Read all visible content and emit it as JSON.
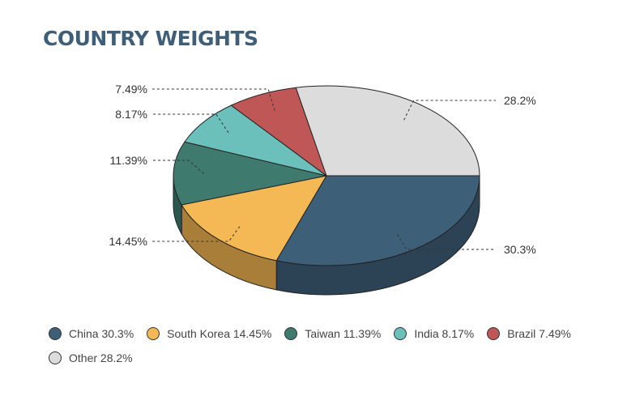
{
  "chart_data": {
    "type": "pie",
    "title": "COUNTRY WEIGHTS",
    "slices": [
      {
        "name": "China",
        "value": 30.3,
        "label": "30.3%",
        "legend": "China 30.3%",
        "color": "#3e5f78",
        "side": "#2c4356"
      },
      {
        "name": "South Korea",
        "value": 14.45,
        "label": "14.45%",
        "legend": "South Korea 14.45%",
        "color": "#f4b955",
        "side": "#a97e38"
      },
      {
        "name": "Taiwan",
        "value": 11.39,
        "label": "11.39%",
        "legend": "Taiwan 11.39%",
        "color": "#3e7a6e",
        "side": "#2c574e"
      },
      {
        "name": "India",
        "value": 8.17,
        "label": "8.17%",
        "legend": "India 8.17%",
        "color": "#6bc0bb",
        "side": "#4a8a86"
      },
      {
        "name": "Brazil",
        "value": 7.49,
        "label": "7.49%",
        "legend": "Brazil 7.49%",
        "color": "#bf5757",
        "side": "#8a3d3d"
      },
      {
        "name": "Other",
        "value": 28.2,
        "label": "28.2%",
        "legend": "Other 28.2%",
        "color": "#dcdcdc",
        "side": "#a8a8a8"
      }
    ],
    "legend_position": "bottom"
  }
}
